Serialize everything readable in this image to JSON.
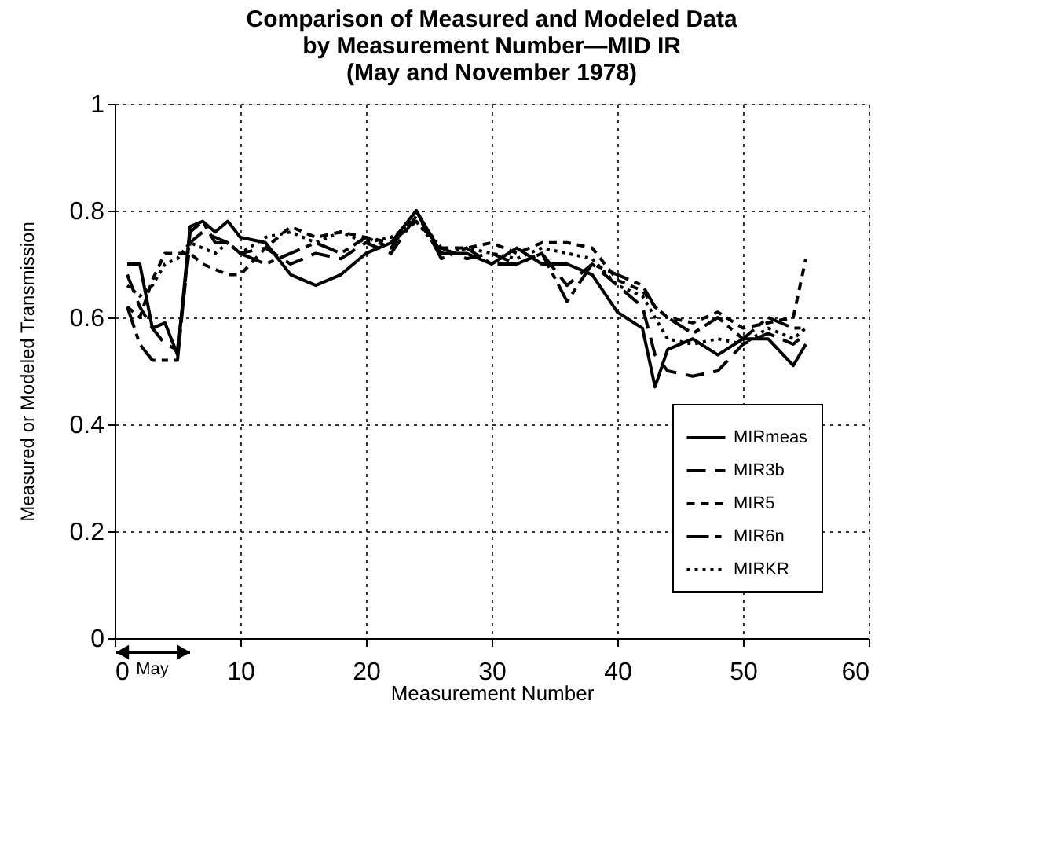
{
  "chart_data": {
    "type": "line",
    "title": "Comparison of Measured and Modeled Data\nby Measurement Number—MID IR\n(May and November 1978)",
    "xlabel": "Measurement Number",
    "ylabel": "Measured or Modeled Transmission",
    "x": [
      1,
      2,
      3,
      4,
      5,
      6,
      7,
      8,
      9,
      10,
      12,
      14,
      16,
      18,
      20,
      22,
      24,
      26,
      28,
      30,
      32,
      34,
      36,
      38,
      40,
      42,
      43,
      44,
      46,
      48,
      50,
      52,
      54,
      55
    ],
    "series": [
      {
        "name": "MIRmeas",
        "color": "#000000",
        "line_style": "solid",
        "values": [
          0.7,
          0.7,
          0.58,
          0.59,
          0.53,
          0.77,
          0.78,
          0.76,
          0.78,
          0.75,
          0.74,
          0.68,
          0.66,
          0.68,
          0.72,
          0.74,
          0.8,
          0.72,
          0.72,
          0.7,
          0.73,
          0.7,
          0.7,
          0.68,
          0.61,
          0.58,
          0.47,
          0.54,
          0.56,
          0.53,
          0.56,
          0.56,
          0.51,
          0.55
        ]
      },
      {
        "name": "MIR3b",
        "color": "#000000",
        "line_style": "dashed",
        "values": [
          0.68,
          0.62,
          0.58,
          0.55,
          0.54,
          0.74,
          0.76,
          0.75,
          0.74,
          0.72,
          0.73,
          0.7,
          0.72,
          0.71,
          0.74,
          0.72,
          0.79,
          0.73,
          0.71,
          0.72,
          0.7,
          0.72,
          0.66,
          0.7,
          0.66,
          0.62,
          0.53,
          0.5,
          0.49,
          0.5,
          0.55,
          0.57,
          0.55,
          0.57
        ]
      },
      {
        "name": "MIR5",
        "color": "#000000",
        "line_style": "dashed",
        "values": [
          0.62,
          0.6,
          0.67,
          0.72,
          0.72,
          0.72,
          0.7,
          0.69,
          0.68,
          0.68,
          0.73,
          0.77,
          0.75,
          0.76,
          0.75,
          0.74,
          0.78,
          0.73,
          0.73,
          0.74,
          0.72,
          0.74,
          0.74,
          0.73,
          0.67,
          0.65,
          0.62,
          0.6,
          0.59,
          0.61,
          0.58,
          0.59,
          0.6,
          0.71
        ]
      },
      {
        "name": "MIR6n",
        "color": "#000000",
        "line_style": "dashed",
        "values": [
          0.62,
          0.55,
          0.52,
          0.52,
          0.52,
          0.76,
          0.78,
          0.74,
          0.74,
          0.72,
          0.7,
          0.72,
          0.74,
          0.72,
          0.75,
          0.73,
          0.8,
          0.71,
          0.73,
          0.7,
          0.7,
          0.72,
          0.63,
          0.7,
          0.68,
          0.66,
          0.62,
          0.6,
          0.57,
          0.6,
          0.56,
          0.6,
          0.58,
          0.58
        ]
      },
      {
        "name": "MIRKR",
        "color": "#000000",
        "line_style": "dotted",
        "values": [
          0.66,
          0.64,
          0.66,
          0.7,
          0.71,
          0.74,
          0.73,
          0.72,
          0.74,
          0.72,
          0.75,
          0.76,
          0.74,
          0.76,
          0.74,
          0.75,
          0.78,
          0.72,
          0.73,
          0.72,
          0.71,
          0.73,
          0.72,
          0.71,
          0.66,
          0.64,
          0.6,
          0.56,
          0.55,
          0.56,
          0.55,
          0.58,
          0.56,
          0.58
        ]
      }
    ],
    "xlim": [
      0,
      60
    ],
    "xticks": [
      0,
      10,
      20,
      30,
      40,
      50,
      60
    ],
    "ylim": [
      0,
      1
    ],
    "yticks": [
      0,
      0.2,
      0.4,
      0.6,
      0.8,
      1
    ],
    "grid": true,
    "legend": "bottom right",
    "marker": "none",
    "annotations": [
      "May"
    ]
  }
}
